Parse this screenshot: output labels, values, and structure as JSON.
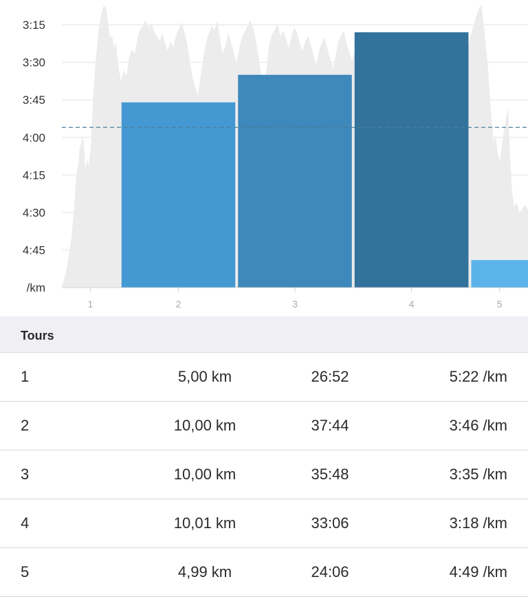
{
  "chart_data": {
    "type": "bar",
    "y_axis": {
      "ticks": [
        "3:15",
        "3:30",
        "3:45",
        "4:00",
        "4:15",
        "4:30",
        "4:45",
        "/km"
      ],
      "range_seconds_per_km": [
        195,
        300
      ],
      "inverted": true,
      "grid": true
    },
    "x_axis": {
      "ticks": [
        "1",
        "2",
        "3",
        "4",
        "5"
      ]
    },
    "bars": [
      {
        "lap": "1",
        "distance_km": 5.0,
        "pace_seconds_per_km": 322,
        "color": "#5bb3ea"
      },
      {
        "lap": "2",
        "distance_km": 10.0,
        "pace_seconds_per_km": 226,
        "color": "#4499d3"
      },
      {
        "lap": "3",
        "distance_km": 10.0,
        "pace_seconds_per_km": 215,
        "color": "#3e88bb"
      },
      {
        "lap": "4",
        "distance_km": 10.01,
        "pace_seconds_per_km": 198,
        "color": "#33729b"
      },
      {
        "lap": "5",
        "distance_km": 4.99,
        "pace_seconds_per_km": 289,
        "color": "#5bb3ea"
      }
    ],
    "average_pace_seconds_per_km": 236,
    "average_line_color": "#4a7f9c",
    "background_profile_color": "#ececec"
  },
  "laps": {
    "header": "Tours",
    "rows": [
      {
        "num": "1",
        "distance": "5,00 km",
        "time": "26:52",
        "pace": "5:22 /km"
      },
      {
        "num": "2",
        "distance": "10,00 km",
        "time": "37:44",
        "pace": "3:46 /km"
      },
      {
        "num": "3",
        "distance": "10,00 km",
        "time": "35:48",
        "pace": "3:35 /km"
      },
      {
        "num": "4",
        "distance": "10,01 km",
        "time": "33:06",
        "pace": "3:18 /km"
      },
      {
        "num": "5",
        "distance": "4,99 km",
        "time": "24:06",
        "pace": "4:49 /km"
      }
    ]
  }
}
